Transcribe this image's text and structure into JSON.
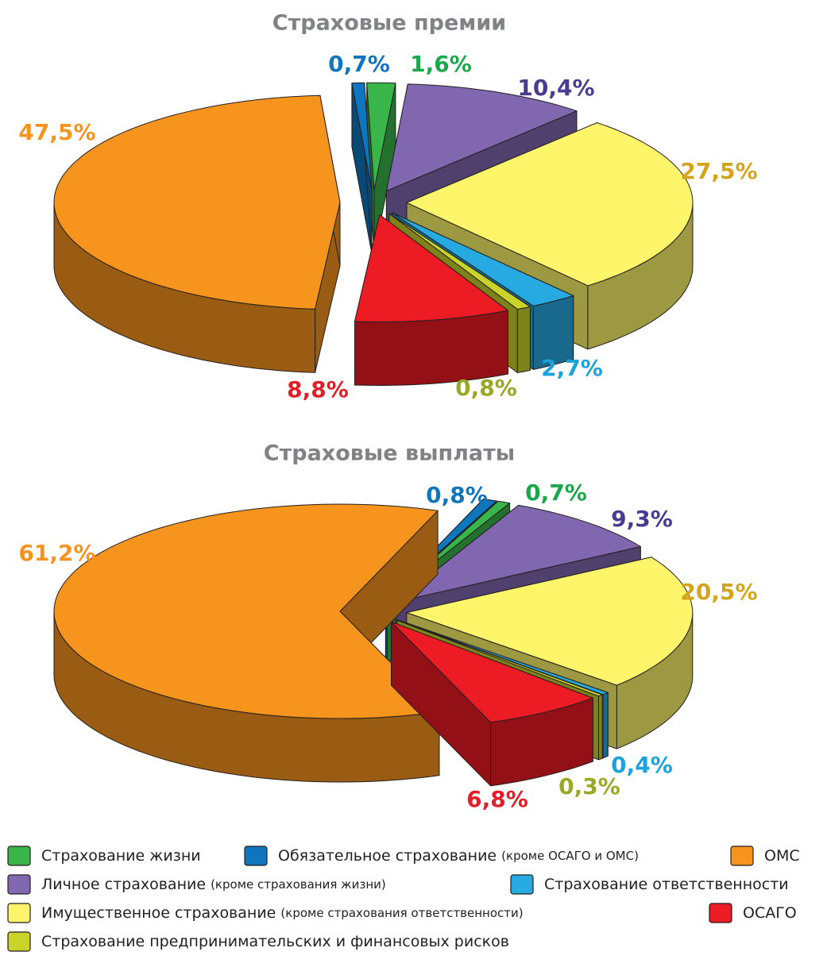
{
  "legend": [
    {
      "name": "Обязательное страхование",
      "detail": "(кроме ОСАГО и ОМС)",
      "color": "#0f75bc",
      "label_color": "#0f75bc"
    },
    {
      "name": "Страхование жизни",
      "color": "#3ab54a",
      "label_color": "#1aa84b"
    },
    {
      "name": "Личное страхование",
      "detail": "(кроме страхования жизни)",
      "color": "#8067b0",
      "label_color": "#4b3b8f"
    },
    {
      "name": "Имущественное страхование",
      "detail": "(кроме страхования ответственности)",
      "color": "#fef56a",
      "label_color": "#d4a51c"
    },
    {
      "name": "Страхование ответственности",
      "color": "#27aae1",
      "label_color": "#1aa3dd"
    },
    {
      "name": "Страхование предпринимательских и финансовых рисков",
      "color": "#c9d32a",
      "label_color": "#9aa823"
    },
    {
      "name": "ОСАГО",
      "color": "#ed1c24",
      "label_color": "#e41e26"
    },
    {
      "name": "ОМС",
      "color": "#f7941d",
      "label_color": "#f7941d"
    }
  ],
  "chart_data": [
    {
      "type": "pie",
      "title": "Страховые премии",
      "values": [
        0.7,
        1.6,
        10.4,
        27.5,
        2.7,
        0.8,
        8.8,
        47.5
      ],
      "value_labels": [
        "0,7%",
        "1,6%",
        "10,4%",
        "27,5%",
        "2,7%",
        "0,8%",
        "8,8%",
        "47,5%"
      ]
    },
    {
      "type": "pie",
      "title": "Страховые выплаты",
      "values": [
        0.8,
        0.7,
        9.3,
        20.5,
        0.4,
        0.3,
        6.8,
        61.2
      ],
      "value_labels": [
        "0,8%",
        "0,7%",
        "9,3%",
        "20,5%",
        "0,4%",
        "0,3%",
        "6,8%",
        "61,2%"
      ]
    }
  ]
}
